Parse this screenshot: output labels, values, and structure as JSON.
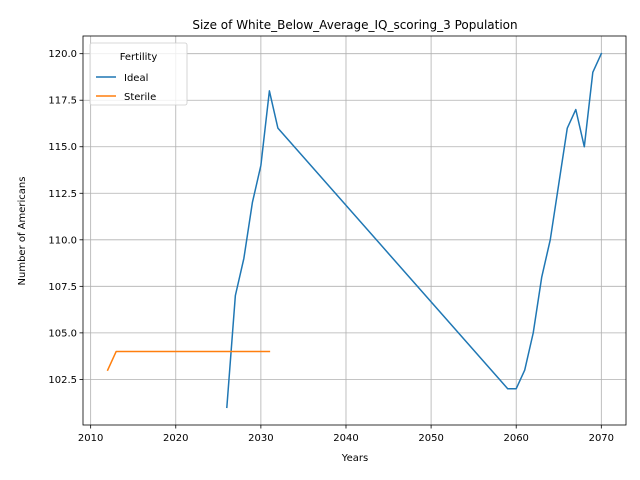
{
  "chart_data": {
    "type": "line",
    "title": "Size of White_Below_Average_IQ_scoring_3 Population",
    "xlabel": "Years",
    "ylabel": "Number of Americans",
    "xlim": [
      2009.1,
      2072.9
    ],
    "ylim": [
      100.05,
      120.95
    ],
    "x_ticks": [
      2010,
      2020,
      2030,
      2040,
      2050,
      2060,
      2070
    ],
    "y_ticks": [
      102.5,
      105.0,
      107.5,
      110.0,
      112.5,
      115.0,
      117.5,
      120.0
    ],
    "grid": true,
    "legend": {
      "title": "Fertility",
      "placement": "top-left"
    },
    "series": [
      {
        "name": "Ideal",
        "color": "#1f77b4",
        "points": [
          [
            2026,
            101
          ],
          [
            2027,
            107
          ],
          [
            2028,
            109
          ],
          [
            2029,
            112
          ],
          [
            2030,
            114
          ],
          [
            2031,
            118
          ],
          [
            2032,
            116
          ],
          [
            2059,
            102
          ],
          [
            2060,
            102
          ],
          [
            2061,
            103
          ],
          [
            2062,
            105
          ],
          [
            2063,
            108
          ],
          [
            2064,
            110
          ],
          [
            2065,
            113
          ],
          [
            2066,
            116
          ],
          [
            2067,
            117
          ],
          [
            2068,
            115
          ],
          [
            2069,
            119
          ],
          [
            2070,
            120
          ]
        ]
      },
      {
        "name": "Sterile",
        "color": "#ff7f0e",
        "points": [
          [
            2012,
            103
          ],
          [
            2013,
            104
          ],
          [
            2014,
            104
          ],
          [
            2015,
            104
          ],
          [
            2016,
            104
          ],
          [
            2017,
            104
          ],
          [
            2018,
            104
          ],
          [
            2019,
            104
          ],
          [
            2020,
            104
          ],
          [
            2021,
            104
          ],
          [
            2022,
            104
          ],
          [
            2023,
            104
          ],
          [
            2024,
            104
          ],
          [
            2025,
            104
          ],
          [
            2026,
            104
          ],
          [
            2027,
            104
          ],
          [
            2028,
            104
          ],
          [
            2029,
            104
          ],
          [
            2030,
            104
          ],
          [
            2031,
            104
          ]
        ]
      }
    ]
  }
}
